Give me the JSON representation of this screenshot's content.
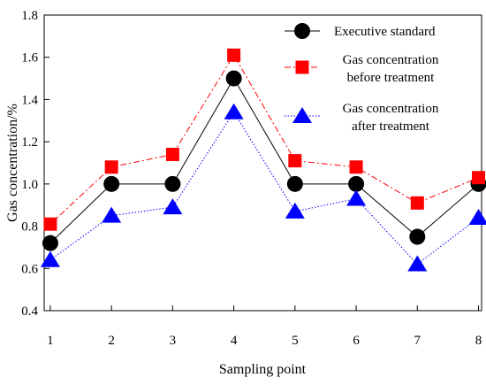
{
  "chart_data": {
    "type": "line",
    "title": "",
    "xlabel": "Sampling point",
    "ylabel": "Gas concentration/%",
    "categories": [
      "1",
      "2",
      "3",
      "4",
      "5",
      "6",
      "7",
      "8"
    ],
    "x": [
      1,
      2,
      3,
      4,
      5,
      6,
      7,
      8
    ],
    "xlim": [
      0.9,
      8.05
    ],
    "ylim": [
      0.4,
      1.8
    ],
    "yticks": [
      "0.4",
      "0.6",
      "0.8",
      "1.0",
      "1.2",
      "1.4",
      "1.6",
      "1.8"
    ],
    "grid": false,
    "legend_position": "top-right",
    "series": [
      {
        "name": "Executive standard",
        "values": [
          0.72,
          1.0,
          1.0,
          1.5,
          1.0,
          1.0,
          0.75,
          1.0
        ],
        "color": "#000000",
        "marker": "circle",
        "line_style": "solid"
      },
      {
        "name": "Gas concentration before treatment",
        "legend_lines": [
          "Gas concentration",
          "before treatment"
        ],
        "values": [
          0.81,
          1.08,
          1.14,
          1.61,
          1.11,
          1.08,
          0.91,
          1.03
        ],
        "color": "#ff0000",
        "marker": "square",
        "line_style": "dash-dot"
      },
      {
        "name": "Gas concentration after treatment",
        "legend_lines": [
          "Gas concentration",
          "after treatment"
        ],
        "values": [
          0.64,
          0.85,
          0.89,
          1.34,
          0.87,
          0.93,
          0.62,
          0.84
        ],
        "color": "#0000ff",
        "marker": "triangle",
        "line_style": "dotted"
      }
    ]
  }
}
